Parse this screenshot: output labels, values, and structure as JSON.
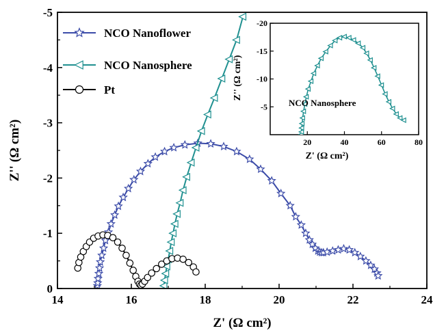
{
  "colors": {
    "nanoflower": "#3b4ba8",
    "nanosphere": "#1f9090",
    "pt": "#000000"
  },
  "chart_data": [
    {
      "type": "line",
      "xlabel": "Z' (Ω cm²)",
      "ylabel": "Z'' (Ω cm²)",
      "xlim": [
        14,
        24
      ],
      "ylim": [
        0,
        -5
      ],
      "xticks": [
        "14",
        "16",
        "18",
        "20",
        "22",
        "24"
      ],
      "yticks": [
        "0",
        "-1",
        "-2",
        "-3",
        "-4",
        "-5"
      ],
      "legend_position": "top-left",
      "series": [
        {
          "name": "NCO Nanoflower",
          "marker": "star",
          "color_key": "nanoflower",
          "x": [
            15.08,
            15.09,
            15.1,
            15.12,
            15.14,
            15.16,
            15.2,
            15.25,
            15.3,
            15.38,
            15.45,
            15.55,
            15.65,
            15.78,
            15.92,
            16.07,
            16.25,
            16.45,
            16.65,
            16.9,
            17.15,
            17.45,
            17.8,
            18.15,
            18.5,
            18.85,
            19.2,
            19.5,
            19.8,
            20.05,
            20.3,
            20.45,
            20.6,
            20.72,
            20.82,
            20.9,
            20.98,
            21.05,
            21.1,
            21.15,
            21.2,
            21.3,
            21.45,
            21.6,
            21.75,
            21.9,
            22.05,
            22.2,
            22.35,
            22.48,
            22.58,
            22.65,
            22.68
          ],
          "y": [
            -0.05,
            -0.1,
            -0.18,
            -0.27,
            -0.37,
            -0.48,
            -0.6,
            -0.73,
            -0.87,
            -1.02,
            -1.17,
            -1.33,
            -1.49,
            -1.65,
            -1.81,
            -1.97,
            -2.12,
            -2.26,
            -2.38,
            -2.48,
            -2.55,
            -2.6,
            -2.63,
            -2.62,
            -2.57,
            -2.48,
            -2.34,
            -2.16,
            -1.95,
            -1.72,
            -1.5,
            -1.3,
            -1.15,
            -1.0,
            -0.88,
            -0.8,
            -0.73,
            -0.68,
            -0.66,
            -0.65,
            -0.65,
            -0.66,
            -0.68,
            -0.7,
            -0.72,
            -0.7,
            -0.65,
            -0.58,
            -0.5,
            -0.42,
            -0.35,
            -0.28,
            -0.23
          ]
        },
        {
          "name": "NCO Nanosphere",
          "marker": "triangle-left",
          "color_key": "nanosphere",
          "x": [
            16.88,
            16.9,
            16.93,
            16.96,
            17.0,
            17.04,
            17.08,
            17.13,
            17.18,
            17.24,
            17.32,
            17.4,
            17.5,
            17.62,
            17.75,
            17.9,
            18.07,
            18.25,
            18.45,
            18.65,
            18.85,
            19.02
          ],
          "y": [
            -0.05,
            -0.15,
            -0.27,
            -0.4,
            -0.53,
            -0.68,
            -0.84,
            -1.0,
            -1.17,
            -1.35,
            -1.55,
            -1.78,
            -2.02,
            -2.28,
            -2.55,
            -2.85,
            -3.15,
            -3.45,
            -3.8,
            -4.15,
            -4.5,
            -4.92
          ]
        },
        {
          "name": "Pt",
          "marker": "circle",
          "color_key": "pt",
          "x": [
            14.55,
            14.58,
            14.63,
            14.7,
            14.78,
            14.87,
            14.98,
            15.1,
            15.23,
            15.36,
            15.5,
            15.63,
            15.75,
            15.86,
            15.96,
            16.05,
            16.12,
            16.18,
            16.22,
            16.26,
            16.3,
            16.36,
            16.44,
            16.55,
            16.68,
            16.82,
            16.96,
            17.1,
            17.25,
            17.4,
            17.55,
            17.68,
            17.75
          ],
          "y": [
            -0.37,
            -0.47,
            -0.57,
            -0.67,
            -0.76,
            -0.84,
            -0.91,
            -0.95,
            -0.97,
            -0.96,
            -0.92,
            -0.84,
            -0.73,
            -0.6,
            -0.46,
            -0.33,
            -0.22,
            -0.13,
            -0.08,
            -0.06,
            -0.08,
            -0.13,
            -0.2,
            -0.28,
            -0.36,
            -0.44,
            -0.5,
            -0.54,
            -0.55,
            -0.53,
            -0.47,
            -0.39,
            -0.3
          ]
        }
      ]
    },
    {
      "type": "line",
      "xlabel": "Z' (Ω cm²)",
      "ylabel": "Z'' (Ω cm²)",
      "xlim": [
        0,
        80
      ],
      "ylim": [
        0,
        -20
      ],
      "xticks": [
        "20",
        "40",
        "60",
        "80"
      ],
      "yticks": [
        "-5",
        "-10",
        "-15",
        "-20"
      ],
      "annotation": "NCO Nanosphere",
      "series": [
        {
          "marker": "triangle-left",
          "color_key": "nanosphere",
          "x": [
            16.8,
            16.9,
            17.0,
            17.2,
            17.5,
            18.0,
            18.7,
            19.5,
            20.5,
            22.0,
            23.5,
            25.5,
            27.5,
            30.0,
            32.5,
            35.0,
            37.5,
            40.0,
            42.5,
            45.0,
            47.5,
            50.0,
            52.0,
            54.0,
            56.0,
            58.0,
            60.0,
            62.0,
            64.0,
            66.0,
            68.0,
            70.0,
            72.0
          ],
          "y": [
            -0.05,
            -0.5,
            -1.2,
            -2.0,
            -3.0,
            -4.2,
            -5.5,
            -6.8,
            -8.2,
            -9.6,
            -11.0,
            -12.4,
            -13.7,
            -14.9,
            -16.0,
            -16.9,
            -17.4,
            -17.6,
            -17.4,
            -17.0,
            -16.4,
            -15.6,
            -14.6,
            -13.4,
            -12.0,
            -10.5,
            -8.9,
            -7.3,
            -5.9,
            -4.7,
            -3.7,
            -3.0,
            -2.6
          ]
        }
      ]
    }
  ]
}
